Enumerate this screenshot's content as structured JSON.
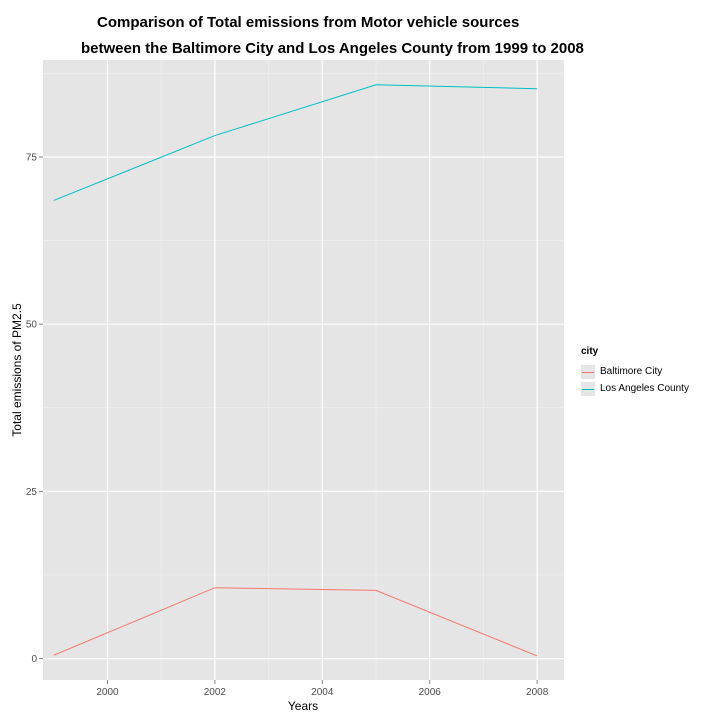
{
  "chart_data": {
    "type": "line",
    "title_line1": "Comparison of Total emissions from Motor vehicle sources",
    "title_line2": "between the Baltimore City and Los Angeles County from 1999 to 2008",
    "xlabel": "Years",
    "ylabel": "Total emissions of PM2.5",
    "xlim": [
      1998.8,
      2008.5
    ],
    "ylim": [
      -3.2,
      89.5
    ],
    "x_ticks": [
      2000,
      2002,
      2004,
      2006,
      2008
    ],
    "y_ticks": [
      0,
      25,
      50,
      75
    ],
    "grid": true,
    "legend": {
      "title": "city",
      "position": "right"
    },
    "series": [
      {
        "name": "Baltimore City",
        "color": "#F8766D",
        "x": [
          1999,
          2002,
          2005,
          2008
        ],
        "y": [
          0.5,
          10.6,
          10.2,
          0.4
        ]
      },
      {
        "name": "Los Angeles County",
        "color": "#00BFC4",
        "x": [
          1999,
          2002,
          2005,
          2008
        ],
        "y": [
          68.5,
          78.2,
          85.8,
          85.2
        ]
      }
    ]
  }
}
